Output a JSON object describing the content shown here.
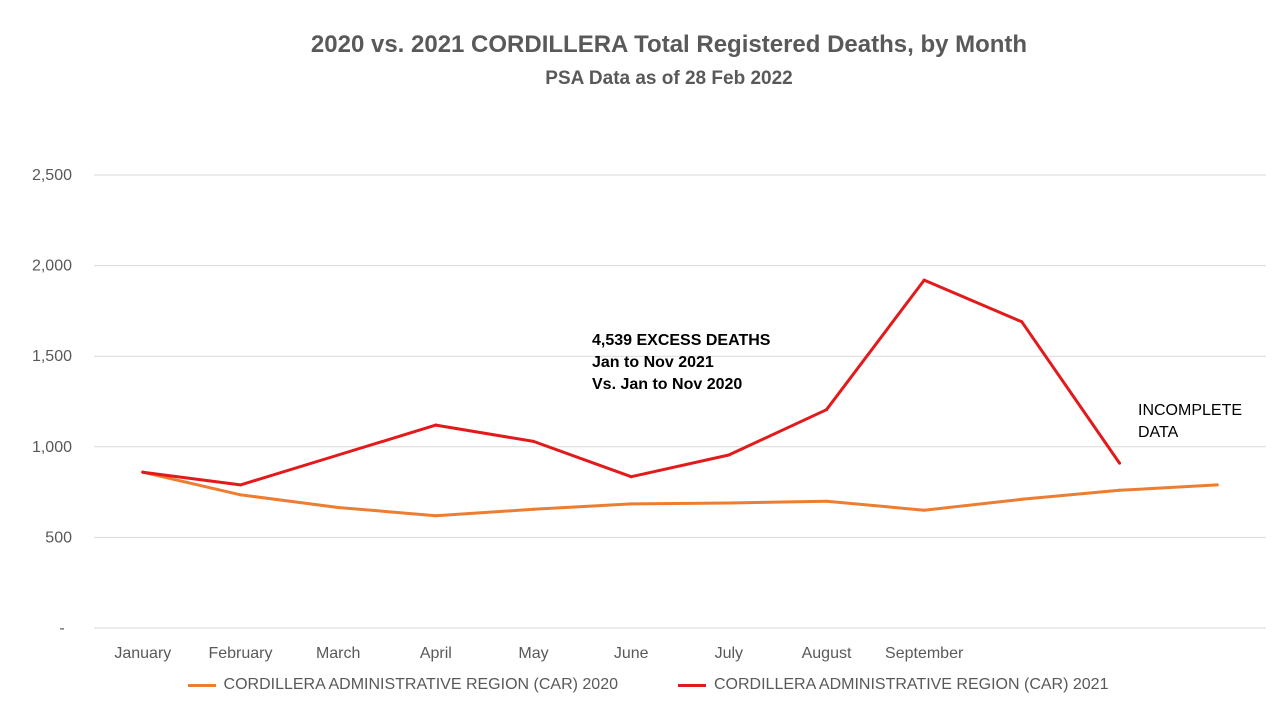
{
  "chart_data": {
    "type": "line",
    "title": "2020 vs. 2021 CORDILLERA Total Registered Deaths, by Month",
    "subtitle": "PSA Data as of 28 Feb 2022",
    "categories": [
      "January",
      "February",
      "March",
      "April",
      "May",
      "June",
      "July",
      "August",
      "September",
      "",
      "",
      ""
    ],
    "series": [
      {
        "name": "CORDILLERA ADMINISTRATIVE REGION (CAR) 2020",
        "color": "#ED7D31",
        "values": [
          860,
          735,
          665,
          620,
          655,
          685,
          690,
          700,
          650,
          710,
          760,
          790
        ]
      },
      {
        "name": "CORDILLERA ADMINISTRATIVE REGION (CAR) 2021",
        "color": "#E31A1C",
        "values": [
          860,
          790,
          955,
          1120,
          1030,
          835,
          955,
          1205,
          1920,
          1690,
          910,
          null
        ]
      }
    ],
    "ylim": [
      0,
      2500
    ],
    "yticks": [
      {
        "value": 0,
        "label": "-"
      },
      {
        "value": 500,
        "label": "500"
      },
      {
        "value": 1000,
        "label": "1,000"
      },
      {
        "value": 1500,
        "label": "1,500"
      },
      {
        "value": 2000,
        "label": "2,000"
      },
      {
        "value": 2500,
        "label": "2,500"
      }
    ],
    "grid": true,
    "legend_position": "bottom",
    "annotations": {
      "excess": [
        "4,539 EXCESS DEATHS",
        "Jan to Nov 2021",
        "Vs. Jan to Nov 2020"
      ],
      "incomplete": [
        "INCOMPLETE",
        "DATA"
      ]
    }
  }
}
